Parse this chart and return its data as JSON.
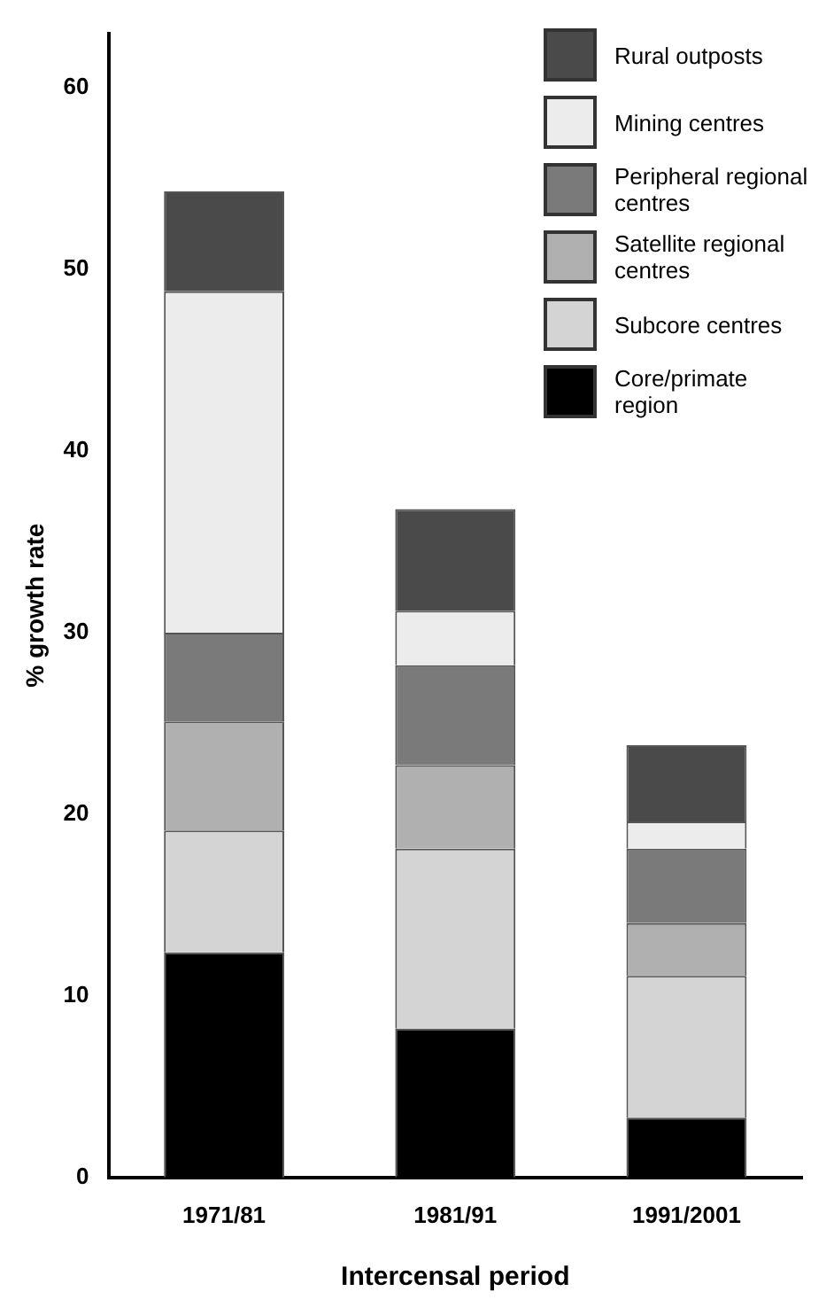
{
  "chart_data": {
    "type": "bar",
    "stacked": true,
    "xlabel": "Intercensal period",
    "ylabel": "% growth rate",
    "categories": [
      "1971/81",
      "1981/91",
      "1991/2001"
    ],
    "ylim": [
      0,
      63
    ],
    "yticks": [
      0,
      10,
      20,
      30,
      40,
      50,
      60
    ],
    "grid": false,
    "legend": "top right",
    "series": [
      {
        "name": "Core/primate region",
        "color": "#000000",
        "values": [
          12.4,
          8.2,
          3.3
        ]
      },
      {
        "name": "Subcore centres",
        "color": "#d4d4d4",
        "values": [
          6.7,
          9.9,
          7.8
        ]
      },
      {
        "name": "Satellite regional centres",
        "color": "#b0b0b0",
        "values": [
          6.0,
          4.6,
          2.9
        ]
      },
      {
        "name": "Peripheral regional centres",
        "color": "#7a7a7a",
        "values": [
          4.9,
          5.5,
          4.1
        ]
      },
      {
        "name": "Mining centres",
        "color": "#ececec",
        "values": [
          18.8,
          3.0,
          1.5
        ]
      },
      {
        "name": "Rural outposts",
        "color": "#4a4a4a",
        "values": [
          5.5,
          5.6,
          4.2
        ]
      }
    ]
  }
}
